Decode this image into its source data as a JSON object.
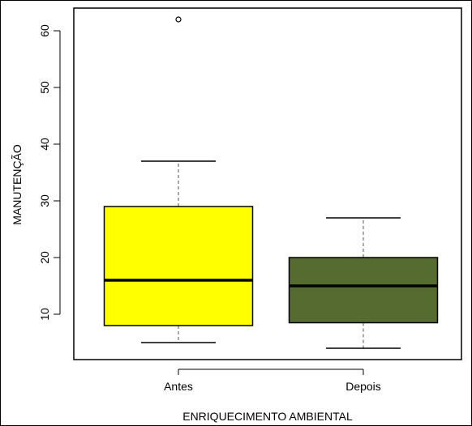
{
  "chart_data": {
    "type": "boxplot",
    "xlabel": "ENRIQUECIMENTO AMBIENTAL",
    "ylabel": "MANUTENÇÃO",
    "ylim": [
      2,
      64
    ],
    "yticks": [
      10,
      20,
      30,
      40,
      50,
      60
    ],
    "grid": false,
    "categories": [
      "Antes",
      "Depois"
    ],
    "boxes": [
      {
        "name": "Antes",
        "whisker_low": 5,
        "q1": 8,
        "median": 16,
        "q3": 29,
        "whisker_high": 37,
        "outliers": [
          62
        ],
        "color": "#ffff00"
      },
      {
        "name": "Depois",
        "whisker_low": 4,
        "q1": 8.5,
        "median": 15,
        "q3": 20,
        "whisker_high": 27,
        "outliers": [],
        "color": "#556b2f"
      }
    ]
  }
}
